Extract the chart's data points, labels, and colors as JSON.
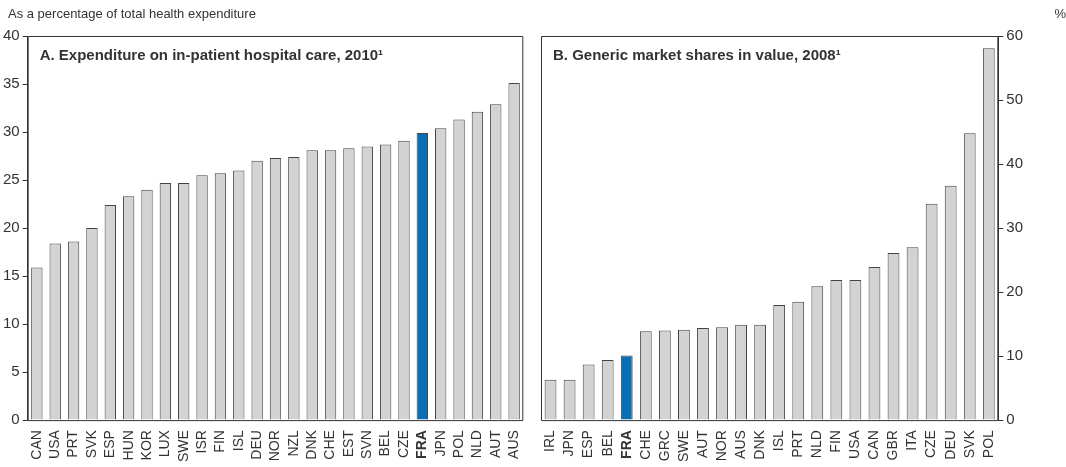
{
  "chart_data": [
    {
      "type": "bar",
      "title": "A. Expenditure on in-patient hospital care, 2010¹",
      "ylabel": "As a percentage of total health expenditure",
      "categories": [
        "CAN",
        "USA",
        "PRT",
        "SVK",
        "ESP",
        "HUN",
        "KOR",
        "LUX",
        "SWE",
        "ISR",
        "FIN",
        "ISL",
        "DEU",
        "NOR",
        "NZL",
        "DNK",
        "CHE",
        "EST",
        "SVN",
        "BEL",
        "CZE",
        "FRA",
        "JPN",
        "POL",
        "NLD",
        "AUT",
        "AUS"
      ],
      "series": [
        {
          "values": [
            15.9,
            18.4,
            18.6,
            20.0,
            22.4,
            23.3,
            24.0,
            24.7,
            24.7,
            25.5,
            25.7,
            26.0,
            27.0,
            27.3,
            27.4,
            28.1,
            28.1,
            28.3,
            28.5,
            28.7,
            29.1,
            29.9,
            30.4,
            31.3,
            32.1,
            32.9,
            35.1
          ],
          "colors": [
            "#d3d3d3",
            "#d3d3d3",
            "#d3d3d3",
            "#d3d3d3",
            "#d3d3d3",
            "#d3d3d3",
            "#d3d3d3",
            "#d3d3d3",
            "#d3d3d3",
            "#d3d3d3",
            "#d3d3d3",
            "#d3d3d3",
            "#d3d3d3",
            "#d3d3d3",
            "#d3d3d3",
            "#d3d3d3",
            "#d3d3d3",
            "#d3d3d3",
            "#d3d3d3",
            "#d3d3d3",
            "#d3d3d3",
            "#0b6fb5",
            "#d3d3d3",
            "#d3d3d3",
            "#d3d3d3",
            "#d3d3d3",
            "#d3d3d3"
          ]
        }
      ],
      "ylim": [
        0,
        40
      ],
      "yticks": [
        0,
        5,
        10,
        15,
        20,
        25,
        30,
        35,
        40
      ],
      "grid": false,
      "legend": false
    },
    {
      "type": "bar",
      "title": "B. Generic market shares in value, 2008¹",
      "y2label": "%",
      "categories": [
        "IRL",
        "JPN",
        "ESP",
        "BEL",
        "FRA",
        "CHE",
        "GRC",
        "SWE",
        "AUT",
        "NOR",
        "AUS",
        "DNK",
        "ISL",
        "PRT",
        "NLD",
        "FIN",
        "USA",
        "CAN",
        "GBR",
        "ITA",
        "CZE",
        "DEU",
        "SVK",
        "POL"
      ],
      "series": [
        {
          "axis": "y2",
          "values": [
            6.3,
            6.3,
            8.7,
            9.4,
            10.1,
            13.9,
            14.0,
            14.1,
            14.4,
            14.5,
            14.9,
            14.9,
            18.0,
            18.5,
            20.9,
            21.9,
            21.9,
            23.9,
            26.1,
            27.0,
            33.8,
            36.6,
            44.8,
            58.1
          ],
          "colors": [
            "#d3d3d3",
            "#d3d3d3",
            "#d3d3d3",
            "#d3d3d3",
            "#0b6fb5",
            "#d3d3d3",
            "#d3d3d3",
            "#d3d3d3",
            "#d3d3d3",
            "#d3d3d3",
            "#d3d3d3",
            "#d3d3d3",
            "#d3d3d3",
            "#d3d3d3",
            "#d3d3d3",
            "#d3d3d3",
            "#d3d3d3",
            "#d3d3d3",
            "#d3d3d3",
            "#d3d3d3",
            "#d3d3d3",
            "#d3d3d3",
            "#d3d3d3",
            "#d3d3d3"
          ]
        }
      ],
      "y2lim": [
        0,
        60
      ],
      "y2ticks": [
        0,
        10,
        20,
        30,
        40,
        50,
        60
      ],
      "grid": false,
      "legend": false
    }
  ]
}
